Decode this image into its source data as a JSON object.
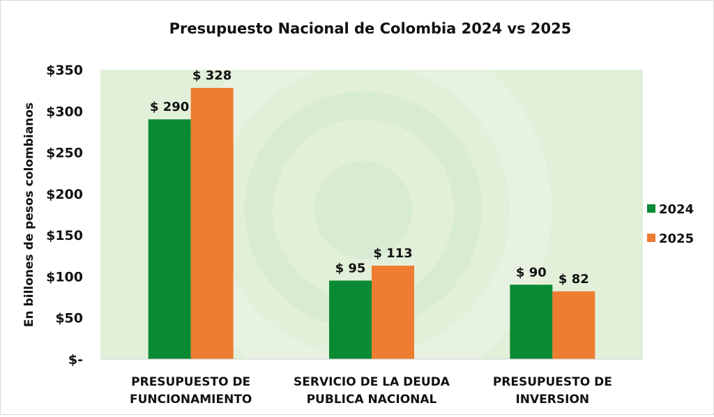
{
  "chart_data": {
    "type": "bar",
    "title": "Presupuesto Nacional de Colombia 2024 vs 2025",
    "xlabel": "",
    "ylabel": "En billones de pesos colombianos",
    "ylim": [
      0,
      350
    ],
    "yticks": [
      0,
      50,
      100,
      150,
      200,
      250,
      300,
      350
    ],
    "ytick_labels": [
      "$-",
      "$50",
      "$100",
      "$150",
      "$200",
      "$250",
      "$300",
      "$350"
    ],
    "grid": false,
    "legend_position": "right",
    "categories": [
      [
        "PRESUPUESTO DE",
        "FUNCIONAMIENTO"
      ],
      [
        "SERVICIO DE LA DEUDA",
        "PUBLICA NACIONAL"
      ],
      [
        "PRESUPUESTO DE",
        "INVERSION"
      ]
    ],
    "series": [
      {
        "name": "2024",
        "color": "#0b8a34",
        "values": [
          290,
          95,
          90
        ],
        "labels": [
          "$ 290",
          "$ 95",
          "$ 90"
        ]
      },
      {
        "name": "2025",
        "color": "#ee7d31",
        "values": [
          328,
          113,
          82
        ],
        "labels": [
          "$ 328",
          "$ 113",
          "$ 82"
        ]
      }
    ],
    "plot_background": "#e2efd9"
  }
}
